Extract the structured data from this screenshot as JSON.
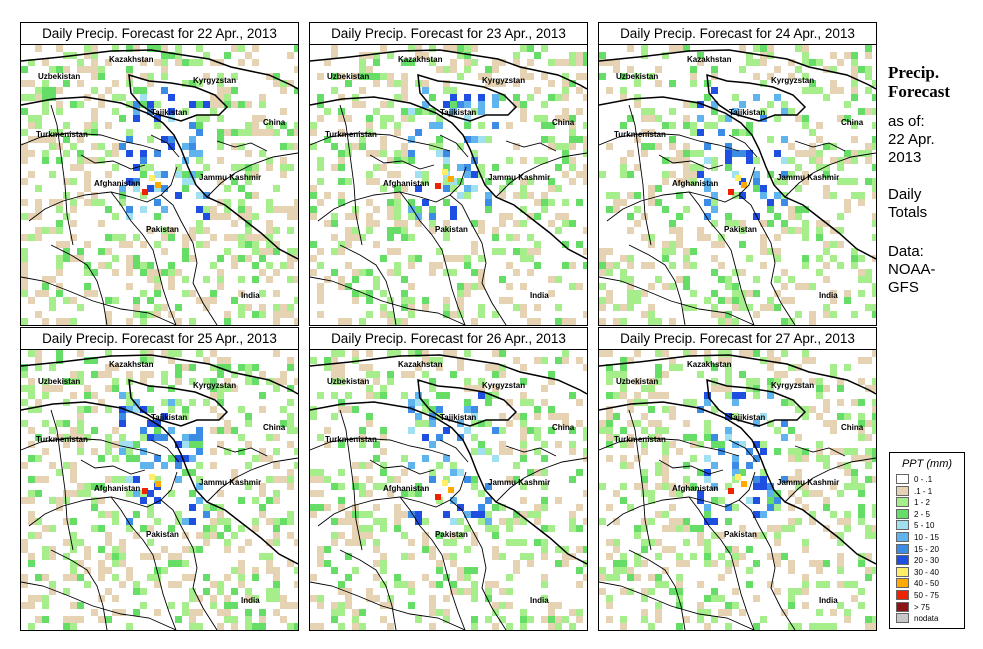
{
  "panels": [
    {
      "title": "Daily Precip. Forecast for  22 Apr., 2013"
    },
    {
      "title": "Daily Precip. Forecast for  23 Apr., 2013"
    },
    {
      "title": "Daily Precip. Forecast for  24 Apr., 2013"
    },
    {
      "title": "Daily Precip. Forecast for  25 Apr., 2013"
    },
    {
      "title": "Daily Precip. Forecast for  26 Apr., 2013"
    },
    {
      "title": "Daily Precip. Forecast for  27 Apr., 2013"
    }
  ],
  "map_labels": {
    "kazakhstan": "Kazakhstan",
    "uzbekistan": "Uzbekistan",
    "kyrgyzstan": "Kyrgyzstan",
    "tajikistan": "Tajikistan",
    "china": "China",
    "turkmenistan": "Turkmenistan",
    "jammu_kashmir": "Jammu Kashmir",
    "afghanistan": "Afghanistan",
    "pakistan": "Pakistan",
    "india": "India"
  },
  "side_info": {
    "heading_line1": "Precip.",
    "heading_line2": "Forecast",
    "asof_line1": "as of:",
    "asof_line2": "22 Apr.",
    "asof_line3": "2013",
    "totals_line1": "Daily",
    "totals_line2": "Totals",
    "data_line1": "Data:",
    "data_line2": "NOAA-",
    "data_line3": "GFS"
  },
  "legend": {
    "title": "PPT (mm)",
    "items": [
      {
        "label": "0 - .1",
        "color": "#ffffff"
      },
      {
        "label": ".1 - 1",
        "color": "#e6d3b4"
      },
      {
        "label": "1 - 2",
        "color": "#a6ee8c"
      },
      {
        "label": "2 - 5",
        "color": "#66dd66"
      },
      {
        "label": "5 - 10",
        "color": "#a0e0f0"
      },
      {
        "label": "10 - 15",
        "color": "#5fb4ee"
      },
      {
        "label": "15 - 20",
        "color": "#3c8ce6"
      },
      {
        "label": "20 - 30",
        "color": "#1f4fe0"
      },
      {
        "label": "30 - 40",
        "color": "#ffee66"
      },
      {
        "label": "40 - 50",
        "color": "#ffaa00"
      },
      {
        "label": "50 - 75",
        "color": "#ee2200"
      },
      {
        "label": "> 75",
        "color": "#8c1414"
      },
      {
        "label": "nodata",
        "color": "#c8c8c8"
      }
    ]
  }
}
